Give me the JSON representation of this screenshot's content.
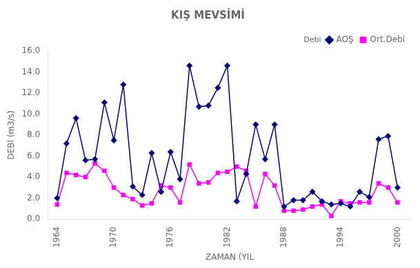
{
  "chart_data": {
    "type": "line",
    "title": "KIŞ MEVSİMİ",
    "xlabel": "ZAMAN (YIL",
    "ylabel": "DEBİ (m3/s)",
    "x": [
      1964,
      1965,
      1966,
      1967,
      1968,
      1969,
      1970,
      1971,
      1972,
      1973,
      1974,
      1975,
      1976,
      1977,
      1978,
      1979,
      1980,
      1981,
      1982,
      1983,
      1984,
      1985,
      1986,
      1987,
      1988,
      1989,
      1990,
      1991,
      1992,
      1993,
      1994,
      1995,
      1996,
      1997,
      1998,
      1999,
      2000
    ],
    "series": [
      {
        "name": "AOŞ",
        "color": "#000080",
        "marker": "diamond",
        "values": [
          2.0,
          7.2,
          9.6,
          5.6,
          5.7,
          11.1,
          7.5,
          12.8,
          3.1,
          2.3,
          6.3,
          2.6,
          6.4,
          3.8,
          14.6,
          10.7,
          10.8,
          12.5,
          14.6,
          1.7,
          4.3,
          9.0,
          5.7,
          9.0,
          1.2,
          1.8,
          1.8,
          2.6,
          1.7,
          1.4,
          1.5,
          1.2,
          2.6,
          2.1,
          7.6,
          7.9,
          3.0
        ]
      },
      {
        "name": "Ort.Debi",
        "color": "#FF00FF",
        "marker": "square",
        "values": [
          1.4,
          4.4,
          4.2,
          4.0,
          5.3,
          4.6,
          3.0,
          2.3,
          1.9,
          1.3,
          1.5,
          3.2,
          3.0,
          1.6,
          5.2,
          3.4,
          3.5,
          4.4,
          4.5,
          5.0,
          4.6,
          1.2,
          4.3,
          3.2,
          0.8,
          0.8,
          0.9,
          1.2,
          1.4,
          0.3,
          1.7,
          1.5,
          1.6,
          1.6,
          3.4,
          3.0,
          1.6
        ]
      }
    ],
    "xlim": [
      1963,
      2001.5
    ],
    "xticks": [
      1964,
      1970,
      1976,
      1982,
      1988,
      1994,
      2000
    ],
    "ylim": [
      0.0,
      16.0
    ],
    "yticks": [
      {
        "value": 0,
        "label": "0.0"
      },
      {
        "value": 2,
        "label": "2.0"
      },
      {
        "value": 4,
        "label": "4.0"
      },
      {
        "value": 6,
        "label": "6.0"
      },
      {
        "value": 8,
        "label": "8.0"
      },
      {
        "value": 10,
        "label": "10.0"
      },
      {
        "value": 12,
        "label": "12.0"
      },
      {
        "value": 14,
        "label": "14.0"
      },
      {
        "value": 16,
        "label": "16.0"
      }
    ],
    "grid": false,
    "legend": "upper right",
    "annotations": [
      "Debi"
    ]
  }
}
